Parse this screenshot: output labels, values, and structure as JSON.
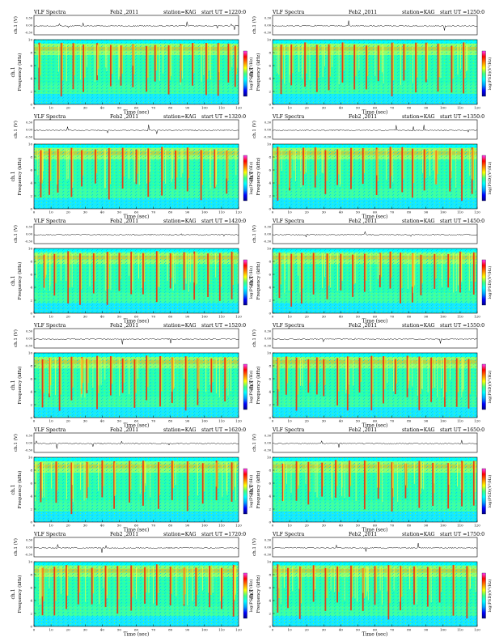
{
  "chart_data": {
    "type": "heatmap",
    "header": {
      "title": "VLF  Spectra",
      "date": "Feb2 ,2011",
      "station": "station=KAG",
      "start_prefix": "start  UT  ="
    },
    "time_axis": {
      "xlabel": "Time  (sec)",
      "range": [
        0,
        120
      ],
      "ticks": [
        0,
        10,
        20,
        30,
        40,
        50,
        60,
        70,
        80,
        90,
        100,
        110,
        120
      ]
    },
    "frequency_axis": {
      "ylabel": "Frequency  (kHz)",
      "range": [
        0,
        10
      ],
      "ticks": [
        0,
        2,
        4,
        6,
        8,
        10
      ]
    },
    "channel_axis": {
      "ylabel": "ch.1  (V)",
      "ticks": [
        "0.30",
        "0.00",
        "-0.30"
      ]
    },
    "colorbar": {
      "label": "log(PSD)(V²/Hz)",
      "colors": [
        "#00008b",
        "#0000ff",
        "#00a0ff",
        "#00ffff",
        "#40ff80",
        "#ffff00",
        "#ff8000",
        "#ff0000",
        "#ff40ff"
      ]
    },
    "channel_label": "ch.1",
    "panels": [
      {
        "start": "1220:0",
        "vlines": [
          3,
          16,
          23,
          29,
          37,
          45,
          51,
          58,
          66,
          71,
          79,
          86,
          93,
          101,
          108,
          114,
          118
        ]
      },
      {
        "start": "1250:0",
        "vlines": [
          5,
          11,
          19,
          26,
          33,
          41,
          48,
          55,
          62,
          70,
          77,
          84,
          90,
          97,
          105,
          112
        ]
      },
      {
        "start": "1320:0",
        "vlines": [
          4,
          9,
          14,
          22,
          28,
          36,
          44,
          52,
          60,
          67,
          75,
          83,
          90,
          98,
          106,
          113
        ]
      },
      {
        "start": "1350:0",
        "vlines": [
          3,
          10,
          18,
          25,
          31,
          38,
          46,
          53,
          61,
          69,
          76,
          82,
          89,
          96,
          104,
          111,
          117
        ]
      },
      {
        "start": "1420:0",
        "vlines": [
          6,
          12,
          20,
          27,
          35,
          43,
          50,
          57,
          64,
          72,
          80,
          88,
          94,
          102,
          109,
          116
        ]
      },
      {
        "start": "1450:0",
        "vlines": [
          4,
          11,
          17,
          24,
          32,
          40,
          47,
          54,
          63,
          69,
          75,
          82,
          87,
          95,
          103,
          110,
          118
        ]
      },
      {
        "start": "1520:0",
        "vlines": [
          5,
          9,
          15,
          22,
          28,
          31,
          37,
          45,
          52,
          59,
          66,
          74,
          81,
          89,
          96,
          104,
          112
        ]
      },
      {
        "start": "1550:0",
        "vlines": [
          3,
          8,
          14,
          21,
          26,
          30,
          38,
          44,
          51,
          58,
          65,
          72,
          79,
          86,
          93,
          101,
          108,
          115
        ]
      },
      {
        "start": "1620:0",
        "vlines": [
          4,
          13,
          22,
          31,
          40,
          47,
          56,
          64,
          73,
          81,
          90,
          99,
          107,
          116
        ]
      },
      {
        "start": "1650:0",
        "vlines": [
          6,
          14,
          21,
          29,
          37,
          45,
          54,
          62,
          70,
          78,
          86,
          94,
          103,
          111,
          118
        ]
      },
      {
        "start": "1720:0",
        "vlines": [
          5,
          12,
          19,
          26,
          34,
          42,
          49,
          57,
          65,
          72,
          80,
          88,
          95,
          103,
          110,
          117
        ]
      },
      {
        "start": "1750:0",
        "vlines": [
          3,
          9,
          16,
          24,
          31,
          38,
          46,
          53,
          60,
          68,
          75,
          83,
          91,
          98,
          106,
          114
        ]
      }
    ]
  }
}
